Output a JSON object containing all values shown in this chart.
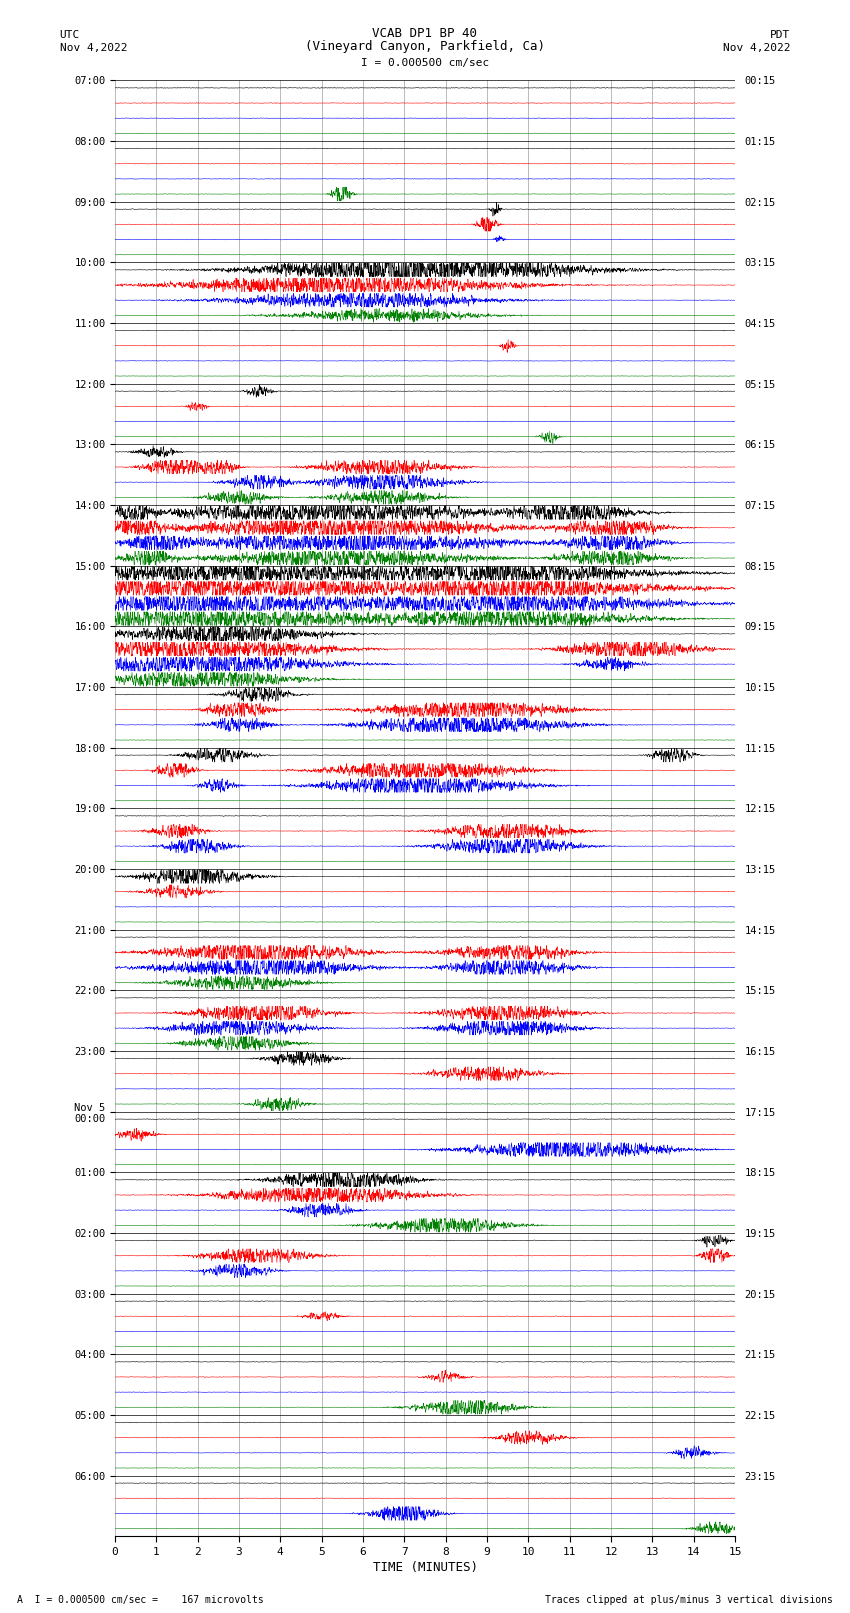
{
  "title_line1": "VCAB DP1 BP 40",
  "title_line2": "(Vineyard Canyon, Parkfield, Ca)",
  "scale_text": "I = 0.000500 cm/sec",
  "left_label": "UTC",
  "left_date": "Nov 4,2022",
  "right_label": "PDT",
  "right_date": "Nov 4,2022",
  "xlabel": "TIME (MINUTES)",
  "footer_left": "A  I = 0.000500 cm/sec =    167 microvolts",
  "footer_right": "Traces clipped at plus/minus 3 vertical divisions",
  "xlim": [
    0,
    15
  ],
  "utc_labels": [
    "07:00",
    "08:00",
    "09:00",
    "10:00",
    "11:00",
    "12:00",
    "13:00",
    "14:00",
    "15:00",
    "16:00",
    "17:00",
    "18:00",
    "19:00",
    "20:00",
    "21:00",
    "22:00",
    "23:00",
    "Nov 5\n00:00",
    "01:00",
    "02:00",
    "03:00",
    "04:00",
    "05:00",
    "06:00"
  ],
  "pdt_labels": [
    "00:15",
    "01:15",
    "02:15",
    "03:15",
    "04:15",
    "05:15",
    "06:15",
    "07:15",
    "08:15",
    "09:15",
    "10:15",
    "11:15",
    "12:15",
    "13:15",
    "14:15",
    "15:15",
    "16:15",
    "17:15",
    "18:15",
    "19:15",
    "20:15",
    "21:15",
    "22:15",
    "23:15"
  ],
  "n_hours": 24,
  "traces_per_hour": 4,
  "trace_colors": [
    "black",
    "red",
    "blue",
    "green"
  ],
  "background_color": "white",
  "vgrid_color": "#888888",
  "hline_color": "black",
  "trace_lw": 0.4,
  "hline_lw": 0.5,
  "figsize": [
    8.5,
    16.13
  ],
  "dpi": 100
}
